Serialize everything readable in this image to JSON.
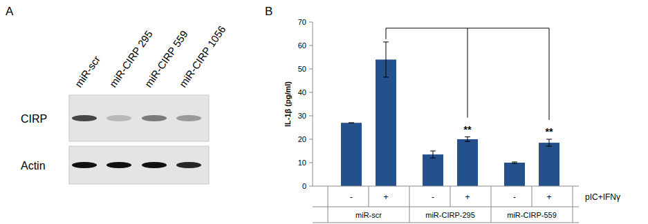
{
  "blot": {
    "label": "A",
    "lanes": [
      "miR-scr",
      "miR-CIRP 295",
      "miR-CIRP 559",
      "miR-CIRP 1056"
    ],
    "rows": [
      {
        "name": "CIRP",
        "bands": [
          0.75,
          0.2,
          0.5,
          0.35
        ]
      },
      {
        "name": "Actin",
        "bands": [
          1,
          1,
          1,
          0.9
        ]
      }
    ]
  },
  "chart_data": {
    "type": "bar",
    "panel_label": "B",
    "y_label": "IL-1β (pg/ml)",
    "x_label": "pIC+IFNγ",
    "categories": [
      "-",
      "+",
      "-",
      "+",
      "-",
      "+"
    ],
    "groups": [
      "miR-scr",
      "miR-CIRP-295",
      "miR-CIRP-559"
    ],
    "values": [
      27,
      54,
      13.5,
      20,
      10,
      18.5
    ],
    "errors": [
      0,
      7.5,
      1.5,
      1,
      0.3,
      1.5
    ],
    "color": "#24508c",
    "ylim": [
      0,
      70
    ],
    "yticks": [
      0,
      10,
      20,
      30,
      40,
      50,
      60,
      70
    ],
    "grid": false,
    "annotations": [
      {
        "index": 3,
        "text": "**"
      },
      {
        "index": 5,
        "text": "**"
      }
    ],
    "comparisons": [
      {
        "from": 1,
        "to": [
          3,
          5
        ]
      }
    ]
  }
}
